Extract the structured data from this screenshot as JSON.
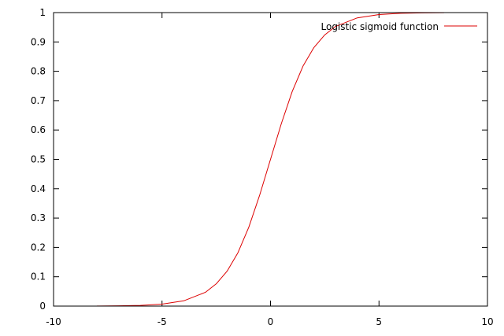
{
  "chart_data": {
    "type": "line",
    "title": "",
    "xlabel": "",
    "ylabel": "",
    "xlim": [
      -10,
      10
    ],
    "ylim": [
      0,
      1
    ],
    "grid": false,
    "legend_position": "top-right",
    "x_ticks": [
      -10,
      -5,
      0,
      5,
      10
    ],
    "y_ticks": [
      0,
      0.1,
      0.2,
      0.3,
      0.4,
      0.5,
      0.6,
      0.7,
      0.8,
      0.9,
      1
    ],
    "x_tick_labels": [
      "-10",
      "-5",
      "0",
      "5",
      "10"
    ],
    "y_tick_labels": [
      "0",
      "0.1",
      "0.2",
      "0.3",
      "0.4",
      "0.5",
      "0.6",
      "0.7",
      "0.8",
      "0.9",
      "1"
    ],
    "series": [
      {
        "name": "Logistic sigmoid function",
        "color": "#dd0000",
        "x": [
          -8,
          -7,
          -6,
          -5,
          -4,
          -3,
          -2.5,
          -2,
          -1.5,
          -1,
          -0.5,
          0,
          0.5,
          1,
          1.5,
          2,
          2.5,
          3,
          4,
          5,
          6,
          7,
          8
        ],
        "y": [
          0.0003,
          0.0009,
          0.0025,
          0.0067,
          0.018,
          0.047,
          0.076,
          0.119,
          0.182,
          0.269,
          0.378,
          0.5,
          0.622,
          0.731,
          0.818,
          0.881,
          0.924,
          0.953,
          0.982,
          0.9933,
          0.9975,
          0.9991,
          0.9997
        ]
      }
    ]
  }
}
